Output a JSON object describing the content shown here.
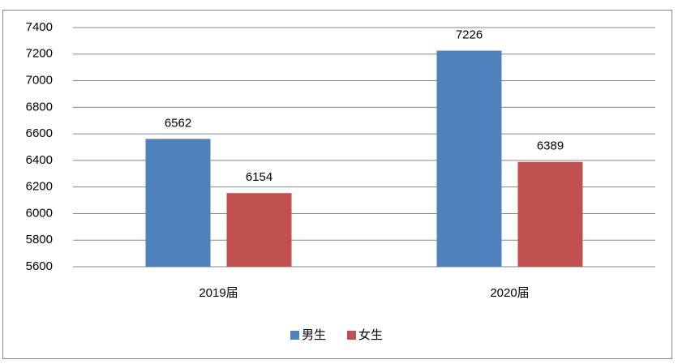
{
  "chart_data": {
    "type": "bar",
    "categories": [
      "2019届",
      "2020届"
    ],
    "series": [
      {
        "name": "男生",
        "color": "#4f81bd",
        "values": [
          6562,
          7226
        ]
      },
      {
        "name": "女生",
        "color": "#c0504d",
        "values": [
          6154,
          6389
        ]
      }
    ],
    "ylim": [
      5600,
      7400
    ],
    "yticks": [
      5600,
      5800,
      6000,
      6200,
      6400,
      6600,
      6800,
      7000,
      7200,
      7400
    ],
    "grid": true,
    "legend": "bottom"
  }
}
